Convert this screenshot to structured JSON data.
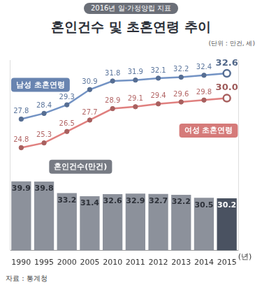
{
  "chart_data": {
    "type": "bar",
    "subtitle": "2016년 일·가정양립 지표",
    "title": "혼인건수 및 초혼연령 추이",
    "unit": "(단위 : 만건, 세)",
    "source": "자료 : 통계청",
    "xlabel": "(년)",
    "categories": [
      "1990",
      "1995",
      "2000",
      "2005",
      "2010",
      "2011",
      "2012",
      "2013",
      "2014",
      "2015"
    ],
    "series": [
      {
        "name": "혼인건수(만건)",
        "type": "bar",
        "axis": "y",
        "colors": [
          "#8c919b",
          "#8c919b",
          "#8c919b",
          "#8c919b",
          "#8c919b",
          "#8c919b",
          "#8c919b",
          "#8c919b",
          "#8c919b",
          "#4a5261"
        ],
        "values": [
          39.9,
          39.8,
          33.2,
          31.4,
          32.6,
          32.9,
          32.7,
          32.2,
          30.5,
          30.2
        ]
      },
      {
        "name": "남성 초혼연령",
        "type": "line",
        "axis": "y2",
        "color": "#7393c4",
        "marker": "circle",
        "values": [
          27.8,
          28.4,
          29.3,
          30.9,
          31.8,
          31.9,
          32.1,
          32.2,
          32.4,
          32.6
        ]
      },
      {
        "name": "여성 초혼연령",
        "type": "line",
        "axis": "y2",
        "color": "#e0807f",
        "marker": "circle",
        "values": [
          24.8,
          25.3,
          26.5,
          27.7,
          28.9,
          29.1,
          29.4,
          29.6,
          29.8,
          30.0
        ],
        "value_labels": [
          "24.8",
          "25.3",
          "26.5",
          "27.7",
          "28.9",
          "29.1",
          "29.4",
          "29.6",
          "29.8",
          "30.0"
        ]
      }
    ],
    "ylim": [
      0,
      110
    ],
    "y2lim": [
      14,
      34
    ],
    "grid": false,
    "data_labels": true,
    "tick_labels": "x"
  }
}
